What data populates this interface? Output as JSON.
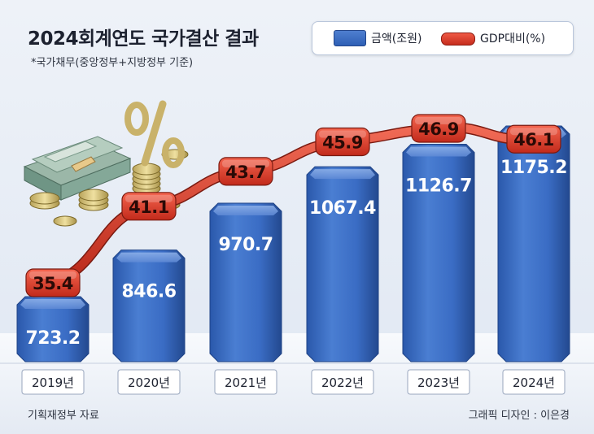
{
  "title": "2024회계연도 국가결산 결과",
  "subtitle": "*국가채무(중앙정부+지방정부 기준)",
  "legend": {
    "bar_label": "금액(조원)",
    "line_label": "GDP대비(%)"
  },
  "footer": {
    "source": "기획재정부 자료",
    "credit": "그래픽 디자인 : 이은경"
  },
  "colors": {
    "bar": "#3a68bf",
    "line": "#d8392a",
    "background": "#e6ecf5"
  },
  "chart_data": {
    "type": "bar",
    "categories": [
      "2019년",
      "2020년",
      "2021년",
      "2022년",
      "2023년",
      "2024년"
    ],
    "series": [
      {
        "name": "금액(조원)",
        "type": "bar",
        "values": [
          723.2,
          846.6,
          970.7,
          1067.4,
          1126.7,
          1175.2
        ]
      },
      {
        "name": "GDP대비(%)",
        "type": "line",
        "values": [
          35.4,
          41.1,
          43.7,
          45.9,
          46.9,
          46.1
        ]
      }
    ],
    "value_labels_bar": [
      "723.2",
      "846.6",
      "970.7",
      "1067.4",
      "1126.7",
      "1175.2"
    ],
    "value_labels_line": [
      "35.4",
      "41.1",
      "43.7",
      "45.9",
      "46.9",
      "46.1"
    ],
    "grid": false,
    "legend_position": "top-right"
  }
}
